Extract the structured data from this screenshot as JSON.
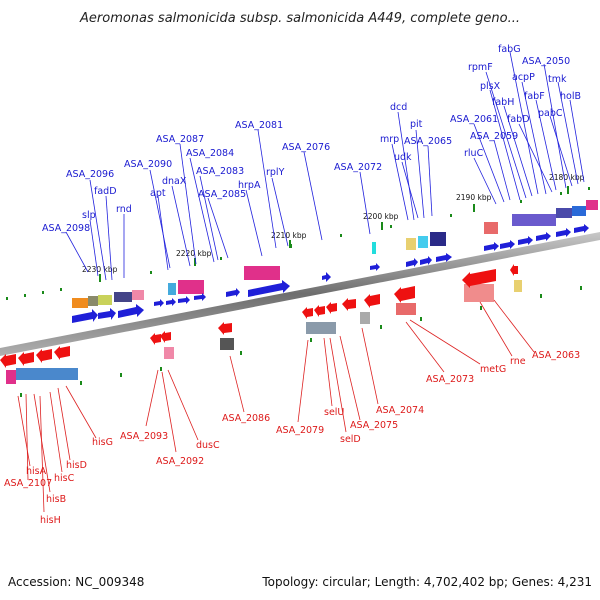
{
  "title": "Aeromonas salmonicida subsp. salmonicida A449, complete geno...",
  "accession": "Accession: NC_009348",
  "topology": "Topology: circular; Length: 4,702,402 bp; Genes: 4,231",
  "ticks": [
    "2230 kbp",
    "2220 kbp",
    "2210 kbp",
    "2200 kbp",
    "2190 kbp",
    "2180 kbp"
  ],
  "forward_genes": [
    "ASA_2098",
    "slp",
    "ASA_2096",
    "fadD",
    "rnd",
    "apt",
    "ASA_2090",
    "dnaX",
    "ASA_2087",
    "ASA_2084",
    "ASA_2083",
    "ASA_2085",
    "hrpA",
    "ASA_2081",
    "rplY",
    "ASA_2076",
    "ASA_2072",
    "mrp",
    "dcd",
    "udk",
    "pit",
    "ASA_2065",
    "rluC",
    "ASA_2061",
    "ASA_2059",
    "plsX",
    "rpmF",
    "fabH",
    "fabG",
    "acpP",
    "fabD",
    "fabF",
    "ASA_2050",
    "pabC",
    "tmk",
    "holB"
  ],
  "reverse_genes": [
    "hisA",
    "ASA_2107",
    "hisB",
    "hisH",
    "hisC",
    "hisD",
    "hisG",
    "ASA_2093",
    "ASA_2092",
    "dusC",
    "ASA_2086",
    "ASA_2079",
    "selU",
    "selD",
    "ASA_2075",
    "ASA_2074",
    "ASA_2073",
    "metG",
    "rne",
    "ASA_2063"
  ],
  "colors": {
    "forward": "#1f1fd8",
    "reverse": "#ee1111",
    "backbone": "#8a8a8a",
    "tick": "#1a8a1a"
  }
}
